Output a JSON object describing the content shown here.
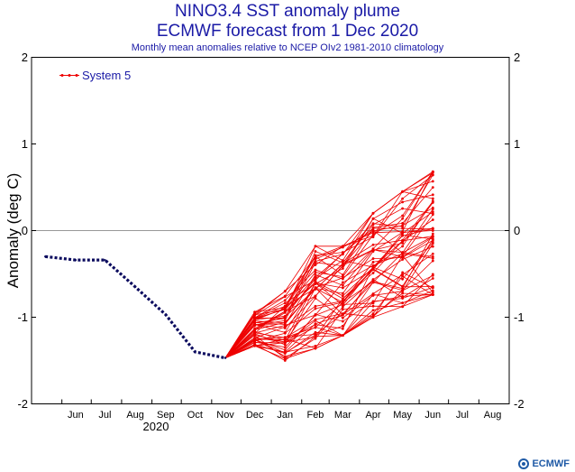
{
  "title": "NINO3.4 SST anomaly plume",
  "title2": "ECMWF forecast from 1 Dec 2020",
  "subtitle": "Monthly mean anomalies relative to NCEP OIv2 1981-2010 climatology",
  "logo_text": "ECMWF",
  "colors": {
    "observed": "#0b0b5e",
    "forecast": "#ee0000",
    "text": "#1a1aa6",
    "axis": "#000000",
    "zero_line": "#999999"
  },
  "chart_data": {
    "type": "line",
    "ylabel": "Anomaly (deg C)",
    "year_label": "2020",
    "x_tick_labels": [
      "Jun",
      "Jul",
      "Aug",
      "Sep",
      "Oct",
      "Nov",
      "Dec",
      "Jan",
      "Feb",
      "Mar",
      "Apr",
      "May",
      "Jun",
      "Jul",
      "Aug"
    ],
    "y_ticks": [
      -2,
      -1,
      0,
      1,
      2
    ],
    "ylim": [
      -2,
      2
    ],
    "legend": {
      "label": "System 5",
      "placement": "top-left"
    },
    "observed": {
      "x": [
        "2020-05-15",
        "2020-06-15",
        "2020-07-15",
        "2020-08-15",
        "2020-09-15",
        "2020-10-15",
        "2020-11-15"
      ],
      "y": [
        -0.3,
        -0.34,
        -0.34,
        -0.65,
        -0.97,
        -1.4,
        -1.47
      ]
    },
    "forecast": {
      "start": {
        "x": "2020-11-15",
        "y": -1.47
      },
      "months": [
        "2020-12-15",
        "2021-01-15",
        "2021-02-15",
        "2021-03-15",
        "2021-04-15",
        "2021-05-15",
        "2021-06-15"
      ],
      "low": [
        -1.33,
        -1.5,
        -1.36,
        -1.21,
        -1.0,
        -0.88,
        -0.74
      ],
      "high": [
        -0.94,
        -0.7,
        -0.18,
        -0.18,
        0.2,
        0.45,
        0.68
      ],
      "member_count": 51
    }
  }
}
